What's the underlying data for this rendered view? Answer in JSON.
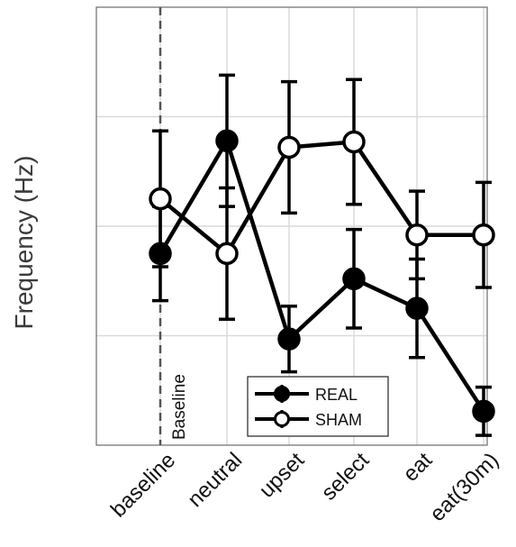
{
  "chart_data": {
    "type": "line",
    "ylabel": "Frequency (Hz)",
    "xlabel": "",
    "categories": [
      "baseline",
      "neutral",
      "upset",
      "select",
      "eat",
      "eat(30m)"
    ],
    "ylim": [
      0,
      4
    ],
    "yticks": [
      0,
      1,
      2,
      3,
      4
    ],
    "ytick_labels_visible": false,
    "grid": true,
    "annotation": "Baseline",
    "reference_line": {
      "category": "baseline",
      "style": "dashed"
    },
    "legend": {
      "placement": "bottom-right"
    },
    "series": [
      {
        "name": "REAL",
        "marker": "filled-circle",
        "values": [
          1.75,
          2.78,
          0.97,
          1.52,
          1.25,
          0.31
        ],
        "errors": [
          0.43,
          0.6,
          0.3,
          0.45,
          0.45,
          0.22
        ]
      },
      {
        "name": "SHAM",
        "marker": "open-circle",
        "values": [
          2.25,
          1.75,
          2.72,
          2.77,
          1.92,
          1.92
        ],
        "errors": [
          0.62,
          0.6,
          0.6,
          0.57,
          0.4,
          0.48
        ]
      }
    ],
    "colors": {
      "line": "#000000",
      "grid": "#d9d9d9",
      "axis": "#6b6b6b",
      "reference": "#555555"
    }
  }
}
